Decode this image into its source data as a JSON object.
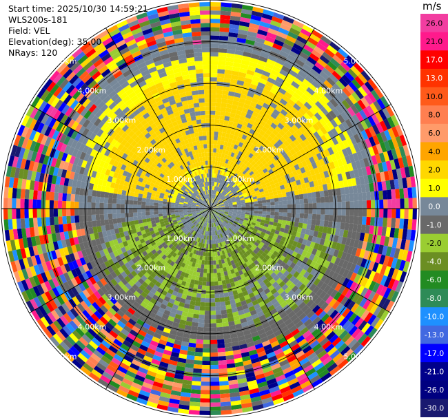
{
  "info": {
    "start_time": "Start time: 2025/10/30 14:59:21",
    "site": "WLS200s-181",
    "field": "Field: VEL",
    "elevation": "Elevation(deg): 35.00",
    "nrays": "NRays: 120"
  },
  "colorbar": {
    "unit": "m/s",
    "ticks": [
      "26.0",
      "21.0",
      "17.0",
      "13.0",
      "10.0",
      "8.0",
      "6.0",
      "4.0",
      "2.0",
      "1.0",
      "0.0",
      "-1.0",
      "-2.0",
      "-4.0",
      "-6.0",
      "-8.0",
      "-10.0",
      "-13.0",
      "-17.0",
      "-21.0",
      "-26.0",
      "-30.0"
    ],
    "colors": [
      "#f23da0",
      "#ff1a8c",
      "#ff0000",
      "#ff3300",
      "#ff5a1a",
      "#ff7f50",
      "#ff9b6a",
      "#ffa500",
      "#ffd700",
      "#ffff00",
      "#778899",
      "#696969",
      "#9acd32",
      "#6b8e23",
      "#228b22",
      "#2e8b57",
      "#1e90ff",
      "#4169e1",
      "#0000ff",
      "#00008b",
      "#000080",
      "#191970"
    ]
  },
  "chart_data": {
    "type": "heatmap",
    "projection": "polar PPI",
    "field": "VEL",
    "units": "m/s",
    "nrays": 120,
    "range_rings_km": [
      1.0,
      2.0,
      3.0,
      4.0,
      5.0
    ],
    "ring_labels": [
      "1.00km",
      "2.00km",
      "3.00km",
      "4.00km",
      "5.00km"
    ],
    "max_range_km": 5.0,
    "color_range": [
      -30.0,
      26.0
    ],
    "near_field_pattern": {
      "north_sector_velocity": "positive 2.0 to 4.0 (yellow)",
      "south_sector_velocity": "negative -1.0 to -2.0 (green)",
      "core_velocity": "0.0 (gray)",
      "outer_field": "noise across full color scale"
    }
  }
}
